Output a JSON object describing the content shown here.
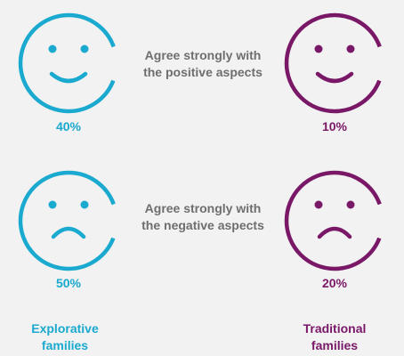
{
  "colors": {
    "explorative": "#1aa9cf",
    "traditional": "#7a1868",
    "text": "#6e6e6e"
  },
  "rows": [
    {
      "label_line1": "Agree strongly with",
      "label_line2": "the positive aspects",
      "face": "smile",
      "explorative_pct": "40%",
      "traditional_pct": "10%"
    },
    {
      "label_line1": "Agree strongly with",
      "label_line2": "the negative aspects",
      "face": "frown",
      "explorative_pct": "50%",
      "traditional_pct": "20%"
    }
  ],
  "groups": {
    "explorative_line1": "Explorative",
    "explorative_line2": "families",
    "traditional_line1": "Traditional",
    "traditional_line2": "families"
  }
}
